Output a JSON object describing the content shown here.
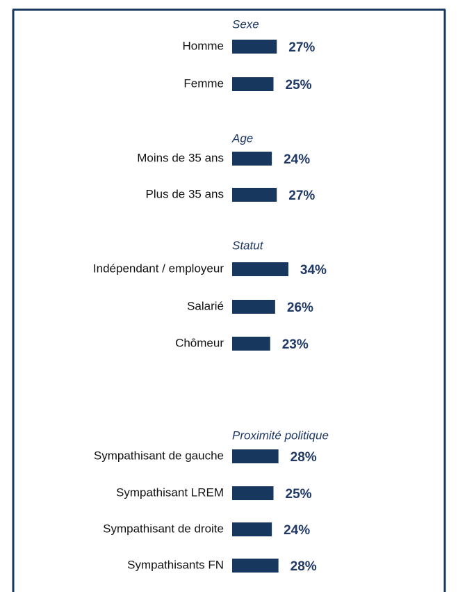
{
  "chart_data": {
    "type": "bar",
    "orientation": "horizontal",
    "color": "#17375e",
    "groups": [
      {
        "name": "Sexe",
        "categories": [
          "Homme",
          "Femme"
        ],
        "values": [
          27,
          25
        ],
        "value_labels": [
          "27%",
          "25%"
        ]
      },
      {
        "name": "Age",
        "categories": [
          "Moins de 35 ans",
          "Plus de 35 ans"
        ],
        "values": [
          24,
          27
        ],
        "value_labels": [
          "24%",
          "27%"
        ]
      },
      {
        "name": "Statut",
        "categories": [
          "Indépendant / employeur",
          "Salarié",
          "Chômeur"
        ],
        "values": [
          34,
          26,
          23
        ],
        "value_labels": [
          "34%",
          "26%",
          "23%"
        ]
      },
      {
        "name": "Proximité politique",
        "categories": [
          "Sympathisant de gauche",
          "Sympathisant LREM",
          "Sympathisant de droite",
          "Sympathisants FN"
        ],
        "values": [
          28,
          25,
          24,
          28
        ],
        "value_labels": [
          "28%",
          "25%",
          "24%",
          "28%"
        ]
      }
    ]
  }
}
